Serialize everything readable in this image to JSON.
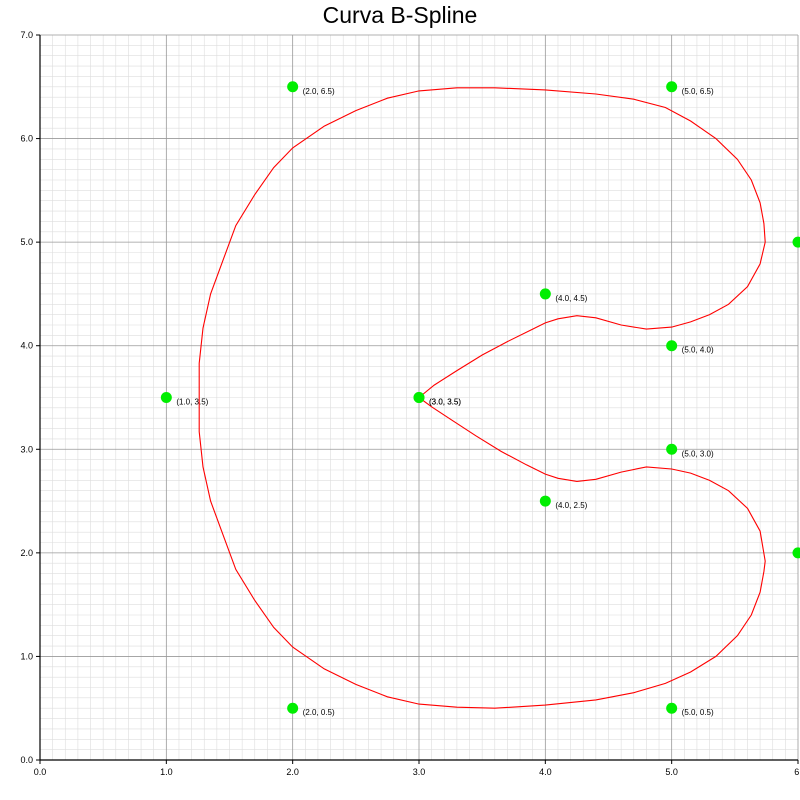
{
  "chart_data": {
    "type": "line",
    "title": "Curva B-Spline",
    "xlabel": "",
    "ylabel": "",
    "xlim": [
      0,
      6
    ],
    "ylim": [
      0,
      7
    ],
    "grid": true,
    "x_ticks": [
      "0.0",
      "1.0",
      "2.0",
      "3.0",
      "4.0",
      "5.0",
      "6."
    ],
    "y_ticks": [
      "0.0",
      "1.0",
      "2.0",
      "3.0",
      "4.0",
      "5.0",
      "6.0",
      "7.0"
    ],
    "curve_color": "#ff0000",
    "point_color": "#00ee00",
    "control_points": [
      {
        "x": 3,
        "y": 3.5,
        "label": "(3.0, 3.5)"
      },
      {
        "x": 4,
        "y": 4.5,
        "label": "(4.0, 4.5)"
      },
      {
        "x": 5,
        "y": 4,
        "label": "(5.0, 4.0)"
      },
      {
        "x": 6,
        "y": 5,
        "label": ""
      },
      {
        "x": 5,
        "y": 6.5,
        "label": "(5.0, 6.5)"
      },
      {
        "x": 2,
        "y": 6.5,
        "label": "(2.0, 6.5)"
      },
      {
        "x": 1,
        "y": 3.5,
        "label": "(1.0, 3.5)"
      },
      {
        "x": 2,
        "y": 0.5,
        "label": "(2.0, 0.5)"
      },
      {
        "x": 5,
        "y": 0.5,
        "label": "(5.0, 0.5)"
      },
      {
        "x": 6,
        "y": 2,
        "label": ""
      },
      {
        "x": 5,
        "y": 3,
        "label": "(5.0, 3.0)"
      },
      {
        "x": 4,
        "y": 2.5,
        "label": "(4.0, 2.5)"
      },
      {
        "x": 3,
        "y": 3.5,
        "label": "(3.0, 3.5)"
      }
    ],
    "curve_points": [
      [
        3.0,
        3.5
      ],
      [
        3.12,
        3.62
      ],
      [
        3.3,
        3.76
      ],
      [
        3.5,
        3.91
      ],
      [
        3.7,
        4.04
      ],
      [
        3.9,
        4.16
      ],
      [
        4.0,
        4.22
      ],
      [
        4.1,
        4.26
      ],
      [
        4.25,
        4.29
      ],
      [
        4.4,
        4.27
      ],
      [
        4.6,
        4.2
      ],
      [
        4.8,
        4.16
      ],
      [
        5.0,
        4.18
      ],
      [
        5.15,
        4.23
      ],
      [
        5.3,
        4.3
      ],
      [
        5.45,
        4.4
      ],
      [
        5.6,
        4.57
      ],
      [
        5.7,
        4.79
      ],
      [
        5.74,
        5.0
      ],
      [
        5.73,
        5.18
      ],
      [
        5.7,
        5.38
      ],
      [
        5.63,
        5.6
      ],
      [
        5.52,
        5.8
      ],
      [
        5.35,
        6.0
      ],
      [
        5.15,
        6.17
      ],
      [
        4.95,
        6.3
      ],
      [
        4.7,
        6.38
      ],
      [
        4.4,
        6.43
      ],
      [
        4.0,
        6.47
      ],
      [
        3.6,
        6.49
      ],
      [
        3.3,
        6.49
      ],
      [
        3.0,
        6.46
      ],
      [
        2.75,
        6.39
      ],
      [
        2.5,
        6.27
      ],
      [
        2.25,
        6.12
      ],
      [
        2.0,
        5.91
      ],
      [
        1.85,
        5.72
      ],
      [
        1.7,
        5.46
      ],
      [
        1.55,
        5.16
      ],
      [
        1.45,
        4.83
      ],
      [
        1.35,
        4.5
      ],
      [
        1.29,
        4.17
      ],
      [
        1.26,
        3.83
      ],
      [
        1.26,
        3.5
      ],
      [
        1.26,
        3.17
      ],
      [
        1.29,
        2.83
      ],
      [
        1.35,
        2.5
      ],
      [
        1.45,
        2.17
      ],
      [
        1.55,
        1.84
      ],
      [
        1.7,
        1.54
      ],
      [
        1.85,
        1.28
      ],
      [
        2.0,
        1.09
      ],
      [
        2.25,
        0.88
      ],
      [
        2.5,
        0.73
      ],
      [
        2.75,
        0.61
      ],
      [
        3.0,
        0.54
      ],
      [
        3.3,
        0.51
      ],
      [
        3.6,
        0.5
      ],
      [
        4.0,
        0.53
      ],
      [
        4.4,
        0.58
      ],
      [
        4.7,
        0.65
      ],
      [
        4.95,
        0.74
      ],
      [
        5.15,
        0.85
      ],
      [
        5.35,
        1.0
      ],
      [
        5.52,
        1.2
      ],
      [
        5.63,
        1.4
      ],
      [
        5.7,
        1.62
      ],
      [
        5.73,
        1.82
      ],
      [
        5.74,
        1.92
      ],
      [
        5.7,
        2.21
      ],
      [
        5.6,
        2.43
      ],
      [
        5.45,
        2.6
      ],
      [
        5.3,
        2.7
      ],
      [
        5.15,
        2.77
      ],
      [
        5.0,
        2.81
      ],
      [
        4.8,
        2.83
      ],
      [
        4.6,
        2.78
      ],
      [
        4.4,
        2.71
      ],
      [
        4.25,
        2.69
      ],
      [
        4.1,
        2.72
      ],
      [
        4.0,
        2.76
      ],
      [
        3.85,
        2.85
      ],
      [
        3.65,
        2.98
      ],
      [
        3.45,
        3.13
      ],
      [
        3.25,
        3.29
      ],
      [
        3.1,
        3.41
      ],
      [
        3.0,
        3.5
      ]
    ]
  }
}
